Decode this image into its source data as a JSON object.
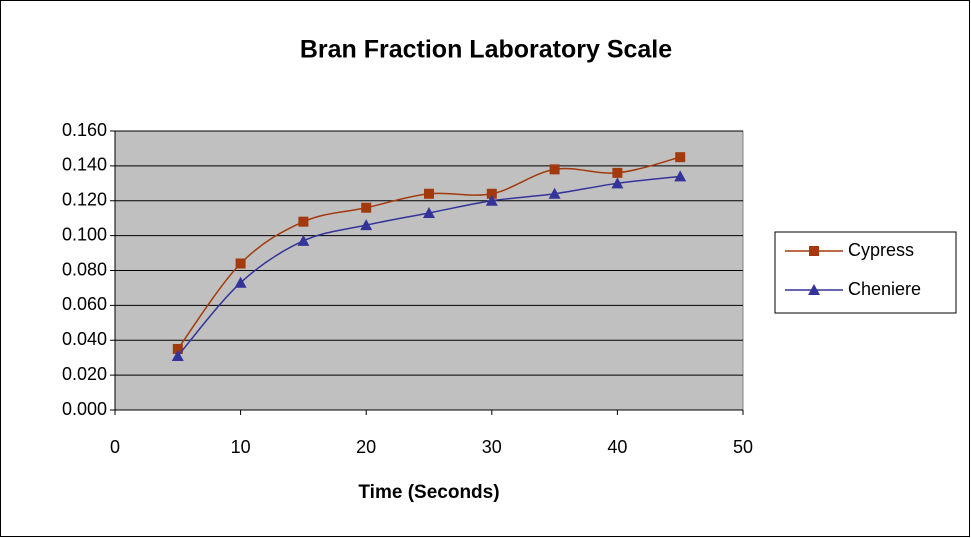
{
  "chart_data": {
    "type": "line",
    "title": "Bran Fraction Laboratory Scale",
    "xlabel": "Time (Seconds)",
    "x": [
      5,
      10,
      15,
      20,
      25,
      30,
      35,
      40,
      45
    ],
    "series": [
      {
        "name": "Cypress",
        "color": "#a33a0d",
        "marker": "square",
        "values": [
          0.035,
          0.084,
          0.108,
          0.116,
          0.124,
          0.124,
          0.138,
          0.136,
          0.145
        ]
      },
      {
        "name": "Cheniere",
        "color": "#333399",
        "marker": "triangle",
        "values": [
          0.031,
          0.073,
          0.097,
          0.106,
          0.113,
          0.12,
          0.124,
          0.13,
          0.134
        ]
      }
    ],
    "xlim": [
      0,
      50
    ],
    "xticks": [
      0,
      10,
      20,
      30,
      40,
      50
    ],
    "ylim": [
      0,
      0.16
    ],
    "yticks": [
      {
        "value": 0,
        "label": "0.000"
      },
      {
        "value": 0.02,
        "label": "0.020"
      },
      {
        "value": 0.04,
        "label": "0.040"
      },
      {
        "value": 0.06,
        "label": "0.060"
      },
      {
        "value": 0.08,
        "label": "0.080"
      },
      {
        "value": 0.1,
        "label": "0.100"
      },
      {
        "value": 0.12,
        "label": "0.120"
      },
      {
        "value": 0.14,
        "label": "0.140"
      },
      {
        "value": 0.16,
        "label": "0.160"
      }
    ],
    "grid": true,
    "smooth": true,
    "legend": "right",
    "plot_background": "#c0c0c0"
  }
}
